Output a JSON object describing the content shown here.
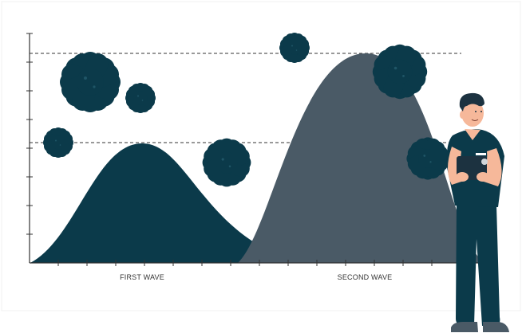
{
  "labels": {
    "first_wave": "FIRST WAVE",
    "second_wave": "SECOND WAVE"
  },
  "colors": {
    "first_wave": "#0b3a4a",
    "second_wave": "#4a5a66",
    "virus": "#0b3a4a",
    "axis": "#333333",
    "dashed_line": "#333333",
    "skin": "#f6b89a",
    "hair": "#1c3240",
    "scrubs": "#0b3a4a"
  },
  "icons": {
    "virus": "coronavirus-icon",
    "person": "doctor-with-clipboard"
  }
}
